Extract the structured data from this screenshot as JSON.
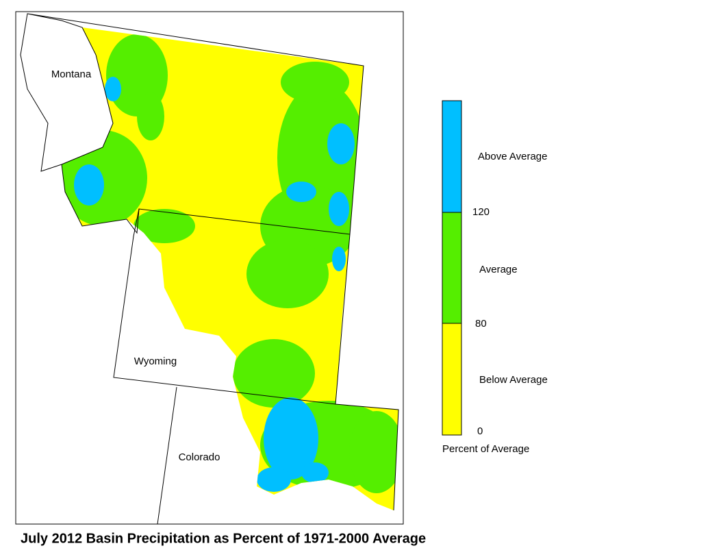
{
  "map": {
    "title": "July 2012 Basin Precipitation as Percent of 1971-2000 Average",
    "states": [
      "Montana",
      "Wyoming",
      "Colorado"
    ],
    "legend": {
      "classes": [
        {
          "label": "Above Average",
          "color": "#00bfff"
        },
        {
          "label": "Average",
          "color": "#55ee00"
        },
        {
          "label": "Below Average",
          "color": "#ffff00"
        }
      ],
      "breaks": [
        120,
        80,
        0
      ],
      "caption": "Percent of Average"
    }
  }
}
